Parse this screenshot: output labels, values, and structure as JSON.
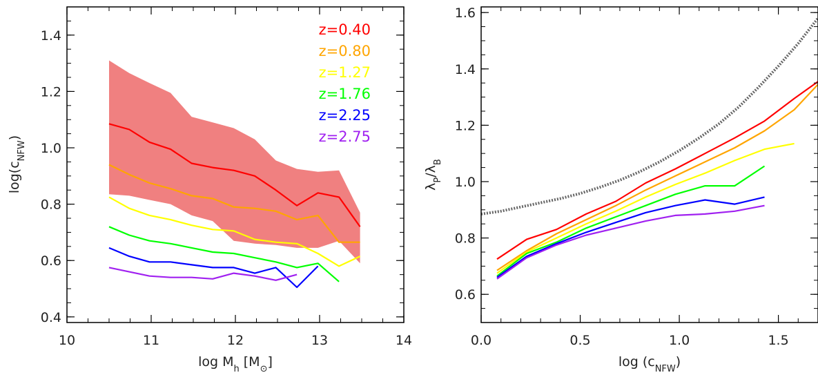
{
  "chart_data": [
    {
      "type": "line",
      "xlabel": "log M_h [M_⊙]",
      "ylabel": "log(c_NFW)",
      "xlim": [
        10,
        14
      ],
      "ylim": [
        0.38,
        1.5
      ],
      "xticks": [
        10,
        11,
        12,
        13,
        14
      ],
      "xtick_labels": [
        "10",
        "11",
        "12",
        "13",
        "14"
      ],
      "yticks": [
        0.4,
        0.6,
        0.8,
        1.0,
        1.2,
        1.4
      ],
      "ytick_labels": [
        "0.4",
        "0.6",
        "0.8",
        "1.0",
        "1.2",
        "1.4"
      ],
      "legend_position": "top-right",
      "band": {
        "color": "#f08080",
        "x": [
          10.5,
          10.74,
          10.98,
          11.23,
          11.48,
          11.73,
          11.98,
          12.23,
          12.48,
          12.73,
          12.98,
          13.23,
          13.48
        ],
        "upper": [
          1.31,
          1.265,
          1.23,
          1.195,
          1.11,
          1.09,
          1.07,
          1.03,
          0.955,
          0.925,
          0.915,
          0.92,
          0.77
        ],
        "lower": [
          0.835,
          0.83,
          0.815,
          0.8,
          0.76,
          0.74,
          0.67,
          0.66,
          0.655,
          0.645,
          0.645,
          0.67,
          0.59
        ]
      },
      "series": [
        {
          "name": "z=0.40",
          "color": "#ff0000",
          "x": [
            10.5,
            10.74,
            10.98,
            11.23,
            11.48,
            11.73,
            11.98,
            12.23,
            12.48,
            12.73,
            12.98,
            13.23,
            13.48
          ],
          "y": [
            1.085,
            1.065,
            1.02,
            0.995,
            0.945,
            0.93,
            0.92,
            0.9,
            0.85,
            0.795,
            0.84,
            0.825,
            0.72
          ]
        },
        {
          "name": "z=0.80",
          "color": "#ffa500",
          "x": [
            10.5,
            10.74,
            10.98,
            11.23,
            11.48,
            11.73,
            11.98,
            12.23,
            12.48,
            12.73,
            12.98,
            13.23,
            13.48
          ],
          "y": [
            0.94,
            0.905,
            0.875,
            0.855,
            0.83,
            0.82,
            0.79,
            0.785,
            0.775,
            0.745,
            0.76,
            0.665,
            0.665
          ]
        },
        {
          "name": "z=1.27",
          "color": "#ffff00",
          "x": [
            10.5,
            10.74,
            10.98,
            11.23,
            11.48,
            11.73,
            11.98,
            12.23,
            12.48,
            12.73,
            12.98,
            13.23,
            13.48
          ],
          "y": [
            0.825,
            0.785,
            0.76,
            0.745,
            0.725,
            0.71,
            0.705,
            0.675,
            0.665,
            0.66,
            0.625,
            0.58,
            0.615
          ]
        },
        {
          "name": "z=1.76",
          "color": "#00ff00",
          "x": [
            10.5,
            10.74,
            10.98,
            11.23,
            11.48,
            11.73,
            11.98,
            12.23,
            12.48,
            12.73,
            12.98,
            13.23
          ],
          "y": [
            0.72,
            0.69,
            0.67,
            0.66,
            0.645,
            0.63,
            0.625,
            0.61,
            0.595,
            0.575,
            0.59,
            0.525
          ]
        },
        {
          "name": "z=2.25",
          "color": "#0000ff",
          "x": [
            10.5,
            10.74,
            10.98,
            11.23,
            11.48,
            11.73,
            11.98,
            12.23,
            12.48,
            12.73,
            12.98
          ],
          "y": [
            0.645,
            0.615,
            0.595,
            0.595,
            0.585,
            0.575,
            0.575,
            0.555,
            0.575,
            0.505,
            0.58
          ]
        },
        {
          "name": "z=2.75",
          "color": "#a020f0",
          "x": [
            10.5,
            10.74,
            10.98,
            11.23,
            11.48,
            11.73,
            11.98,
            12.23,
            12.48,
            12.73
          ],
          "y": [
            0.575,
            0.56,
            0.545,
            0.54,
            0.54,
            0.535,
            0.555,
            0.545,
            0.53,
            0.55
          ]
        }
      ]
    },
    {
      "type": "line",
      "xlabel": "log (c_NFW)",
      "ylabel": "λ_P/λ_B",
      "xlim": [
        0.0,
        1.7
      ],
      "ylim": [
        0.5,
        1.62
      ],
      "xticks": [
        0.0,
        0.5,
        1.0,
        1.5
      ],
      "xtick_labels": [
        "0.0",
        "0.5",
        "1.0",
        "1.5"
      ],
      "yticks": [
        0.6,
        0.8,
        1.0,
        1.2,
        1.4,
        1.6
      ],
      "ytick_labels": [
        "0.6",
        "0.8",
        "1.0",
        "1.2",
        "1.4",
        "1.6"
      ],
      "reference_curve": {
        "style": "dotted",
        "color": "#666666",
        "x": [
          0.0,
          0.1,
          0.2,
          0.3,
          0.4,
          0.5,
          0.6,
          0.7,
          0.8,
          0.9,
          1.0,
          1.1,
          1.2,
          1.3,
          1.4,
          1.5,
          1.6,
          1.7
        ],
        "y": [
          0.885,
          0.895,
          0.91,
          0.925,
          0.94,
          0.958,
          0.98,
          1.005,
          1.035,
          1.07,
          1.11,
          1.155,
          1.205,
          1.265,
          1.335,
          1.41,
          1.49,
          1.58
        ]
      },
      "series": [
        {
          "name": "z=0.40",
          "color": "#ff0000",
          "x": [
            0.08,
            0.23,
            0.38,
            0.53,
            0.68,
            0.83,
            0.98,
            1.13,
            1.28,
            1.43,
            1.58,
            1.7
          ],
          "y": [
            0.725,
            0.795,
            0.83,
            0.885,
            0.93,
            0.995,
            1.045,
            1.1,
            1.155,
            1.215,
            1.295,
            1.355
          ]
        },
        {
          "name": "z=0.80",
          "color": "#ffa500",
          "x": [
            0.08,
            0.23,
            0.38,
            0.53,
            0.68,
            0.83,
            0.98,
            1.13,
            1.28,
            1.43,
            1.58,
            1.7
          ],
          "y": [
            0.685,
            0.755,
            0.815,
            0.865,
            0.915,
            0.97,
            1.02,
            1.07,
            1.12,
            1.18,
            1.255,
            1.345
          ]
        },
        {
          "name": "z=1.27",
          "color": "#ffff00",
          "x": [
            0.08,
            0.23,
            0.38,
            0.53,
            0.68,
            0.83,
            0.98,
            1.13,
            1.28,
            1.43,
            1.58
          ],
          "y": [
            0.675,
            0.75,
            0.8,
            0.85,
            0.895,
            0.945,
            0.99,
            1.03,
            1.075,
            1.115,
            1.135
          ]
        },
        {
          "name": "z=1.76",
          "color": "#00ff00",
          "x": [
            0.08,
            0.23,
            0.38,
            0.53,
            0.68,
            0.83,
            0.98,
            1.13,
            1.28,
            1.43
          ],
          "y": [
            0.665,
            0.745,
            0.785,
            0.835,
            0.875,
            0.915,
            0.955,
            0.985,
            0.985,
            1.055
          ]
        },
        {
          "name": "z=2.25",
          "color": "#0000ff",
          "x": [
            0.08,
            0.23,
            0.38,
            0.53,
            0.68,
            0.83,
            0.98,
            1.13,
            1.28,
            1.43
          ],
          "y": [
            0.66,
            0.735,
            0.78,
            0.82,
            0.855,
            0.89,
            0.915,
            0.935,
            0.92,
            0.945
          ]
        },
        {
          "name": "z=2.75",
          "color": "#a020f0",
          "x": [
            0.08,
            0.23,
            0.38,
            0.53,
            0.68,
            0.83,
            0.98,
            1.13,
            1.28,
            1.43
          ],
          "y": [
            0.655,
            0.73,
            0.775,
            0.81,
            0.835,
            0.86,
            0.88,
            0.885,
            0.895,
            0.915
          ]
        }
      ]
    }
  ]
}
